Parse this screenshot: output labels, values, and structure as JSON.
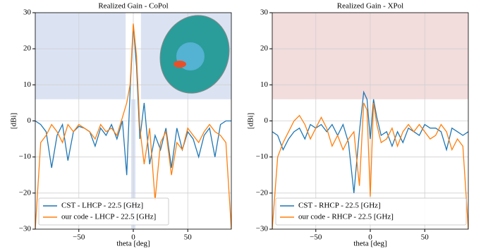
{
  "chart_data": [
    {
      "type": "line",
      "title": "Realized Gain - CoPol",
      "x_label": "theta [deg]",
      "y_label": "[dBi]",
      "x": [
        -90,
        -85,
        -80,
        -75,
        -70,
        -65,
        -60,
        -55,
        -50,
        -45,
        -40,
        -35,
        -30,
        -25,
        -20,
        -15,
        -10,
        -6,
        -3,
        0,
        3,
        6,
        10,
        15,
        20,
        25,
        30,
        35,
        40,
        45,
        50,
        55,
        60,
        65,
        70,
        75,
        80,
        85,
        90
      ],
      "series": [
        {
          "name": "CST - LHCP - 22.5 [GHz]",
          "color": "#1f77b4",
          "values": [
            0,
            -1,
            -3,
            -13,
            -4,
            -1,
            -11,
            -3,
            -1.5,
            -2,
            -3,
            -7,
            -2,
            -4,
            -1,
            -5,
            0,
            -15,
            8,
            26.5,
            15,
            -5,
            5,
            -12,
            -4,
            -8,
            -2,
            -13,
            -2,
            -8,
            -3,
            -5,
            -10,
            -4,
            -2,
            -10,
            -1,
            0,
            0
          ]
        },
        {
          "name": "our code - LHCP - 22.5 [GHz]",
          "color": "#ff7f0e",
          "values": [
            -30,
            -6,
            -4,
            -1,
            -3,
            -6,
            -1,
            -3,
            -1,
            -2,
            -3,
            -5,
            -1,
            -3,
            -2,
            -4,
            1,
            5,
            10,
            27,
            18,
            -2,
            -12,
            -2,
            -22,
            -6,
            -3,
            -15,
            -6,
            -8,
            -2,
            -4,
            -6,
            -3,
            -1,
            -3,
            -4,
            -6,
            -30
          ]
        }
      ],
      "shaded_regions": [
        {
          "xlim": [
            -90,
            -7
          ],
          "ylim": [
            6,
            30
          ]
        },
        {
          "xlim": [
            7,
            90
          ],
          "ylim": [
            6,
            30
          ]
        },
        {
          "xlim": [
            -2,
            2
          ],
          "ylim": [
            -30,
            6
          ]
        }
      ],
      "shade_color": "#dbe3f3",
      "xlim": [
        -90,
        90
      ],
      "ylim": [
        -30,
        30
      ],
      "xticks": [
        {
          "value": -50,
          "label": "−50"
        },
        0,
        50
      ],
      "yticks": [
        {
          "value": -30,
          "label": "−30"
        },
        {
          "value": -20,
          "label": "−20"
        },
        {
          "value": -10,
          "label": "−10"
        },
        0,
        10,
        20,
        30
      ],
      "grid": true,
      "legend": "lower left"
    },
    {
      "type": "line",
      "title": "Realized Gain - XPol",
      "x_label": "theta [deg]",
      "y_label": "[dBi]",
      "x": [
        -90,
        -85,
        -80,
        -75,
        -70,
        -65,
        -60,
        -55,
        -50,
        -45,
        -40,
        -35,
        -30,
        -25,
        -20,
        -15,
        -10,
        -6,
        -3,
        0,
        3,
        6,
        10,
        15,
        20,
        25,
        30,
        35,
        40,
        45,
        50,
        55,
        60,
        65,
        70,
        75,
        80,
        85,
        90
      ],
      "series": [
        {
          "name": "CST - RHCP - 22.5 [GHz]",
          "color": "#1f77b4",
          "values": [
            -3,
            -4,
            -8,
            -5,
            -3,
            -2,
            -5,
            -1,
            -2,
            -1,
            -3,
            -1,
            -4,
            -1,
            -6,
            -20,
            -3,
            8,
            6,
            -5,
            6,
            1,
            -4,
            -3,
            -7,
            -3,
            -6,
            -2,
            -3,
            -4,
            -1,
            -2,
            -2,
            -3,
            -8,
            -2,
            -3,
            -4,
            -3
          ]
        },
        {
          "name": "our code - RHCP - 22.5 [GHz]",
          "color": "#ff7f0e",
          "values": [
            -30,
            -10,
            -6,
            -3,
            0,
            1.5,
            -1,
            -5,
            -2,
            1,
            -2,
            -7,
            -4,
            -8,
            -5,
            -3,
            -18,
            5,
            3,
            -21,
            5,
            -1,
            -6,
            -5,
            -2,
            -7,
            -3,
            -1,
            -3,
            -1,
            -3,
            -5,
            -4,
            -1,
            -3,
            -8,
            -5,
            -7,
            -30
          ]
        }
      ],
      "shaded_regions": [
        {
          "xlim": [
            -90,
            90
          ],
          "ylim": [
            6,
            30
          ]
        }
      ],
      "shade_color": "#f2dcdc",
      "xlim": [
        -90,
        90
      ],
      "ylim": [
        -30,
        30
      ],
      "xticks": [
        {
          "value": -50,
          "label": "−50"
        },
        0,
        50
      ],
      "yticks": [
        {
          "value": -30,
          "label": "−30"
        },
        {
          "value": -20,
          "label": "−20"
        },
        {
          "value": -10,
          "label": "−10"
        },
        0,
        10,
        20,
        30
      ],
      "grid": true,
      "legend": "lower left"
    }
  ]
}
